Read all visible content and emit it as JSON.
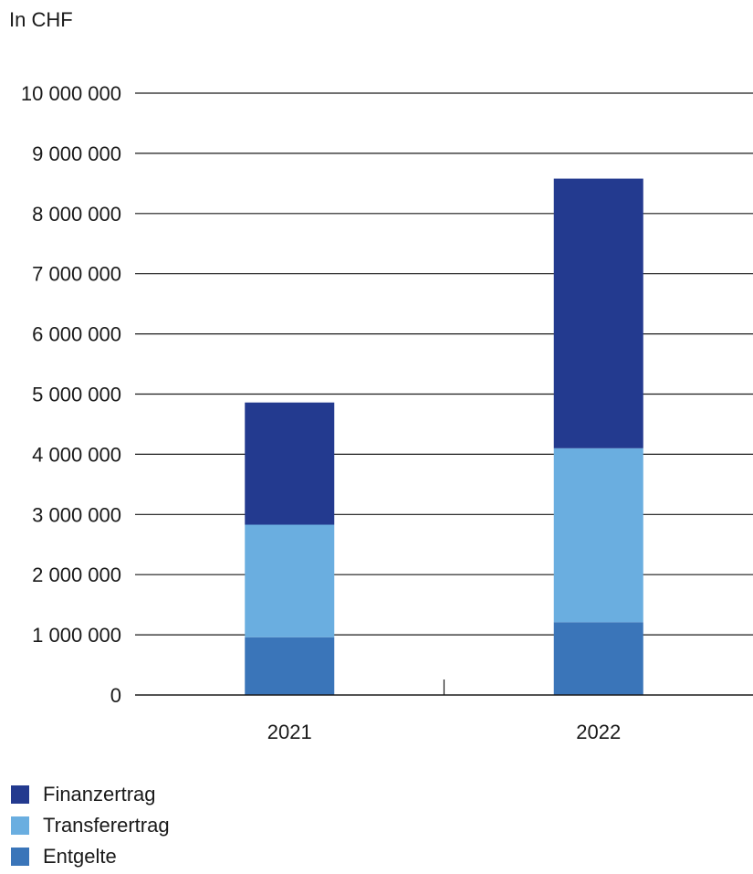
{
  "chart_data": {
    "type": "bar",
    "stacked": true,
    "unit_label": "In CHF",
    "categories": [
      "2021",
      "2022"
    ],
    "series": [
      {
        "name": "Entgelte",
        "color": "#3a75b9",
        "values": [
          960000,
          1210000
        ]
      },
      {
        "name": "Transferertrag",
        "color": "#6aaee0",
        "values": [
          1870000,
          2890000
        ]
      },
      {
        "name": "Finanzertrag",
        "color": "#233a8f",
        "values": [
          2030000,
          4480000
        ]
      }
    ],
    "ylim": [
      0,
      10000000
    ],
    "yticks": [
      {
        "value": 0,
        "label": "0"
      },
      {
        "value": 1000000,
        "label": "1 000 000"
      },
      {
        "value": 2000000,
        "label": "2 000 000"
      },
      {
        "value": 3000000,
        "label": "3 000 000"
      },
      {
        "value": 4000000,
        "label": "4 000 000"
      },
      {
        "value": 5000000,
        "label": "5 000 000"
      },
      {
        "value": 6000000,
        "label": "6 000 000"
      },
      {
        "value": 7000000,
        "label": "7 000 000"
      },
      {
        "value": 8000000,
        "label": "8 000 000"
      },
      {
        "value": 9000000,
        "label": "9 000 000"
      },
      {
        "value": 10000000,
        "label": "10 000 000"
      }
    ],
    "grid": true,
    "legend_position": "bottom-left",
    "legend_order": [
      "Finanzertrag",
      "Transferertrag",
      "Entgelte"
    ]
  }
}
